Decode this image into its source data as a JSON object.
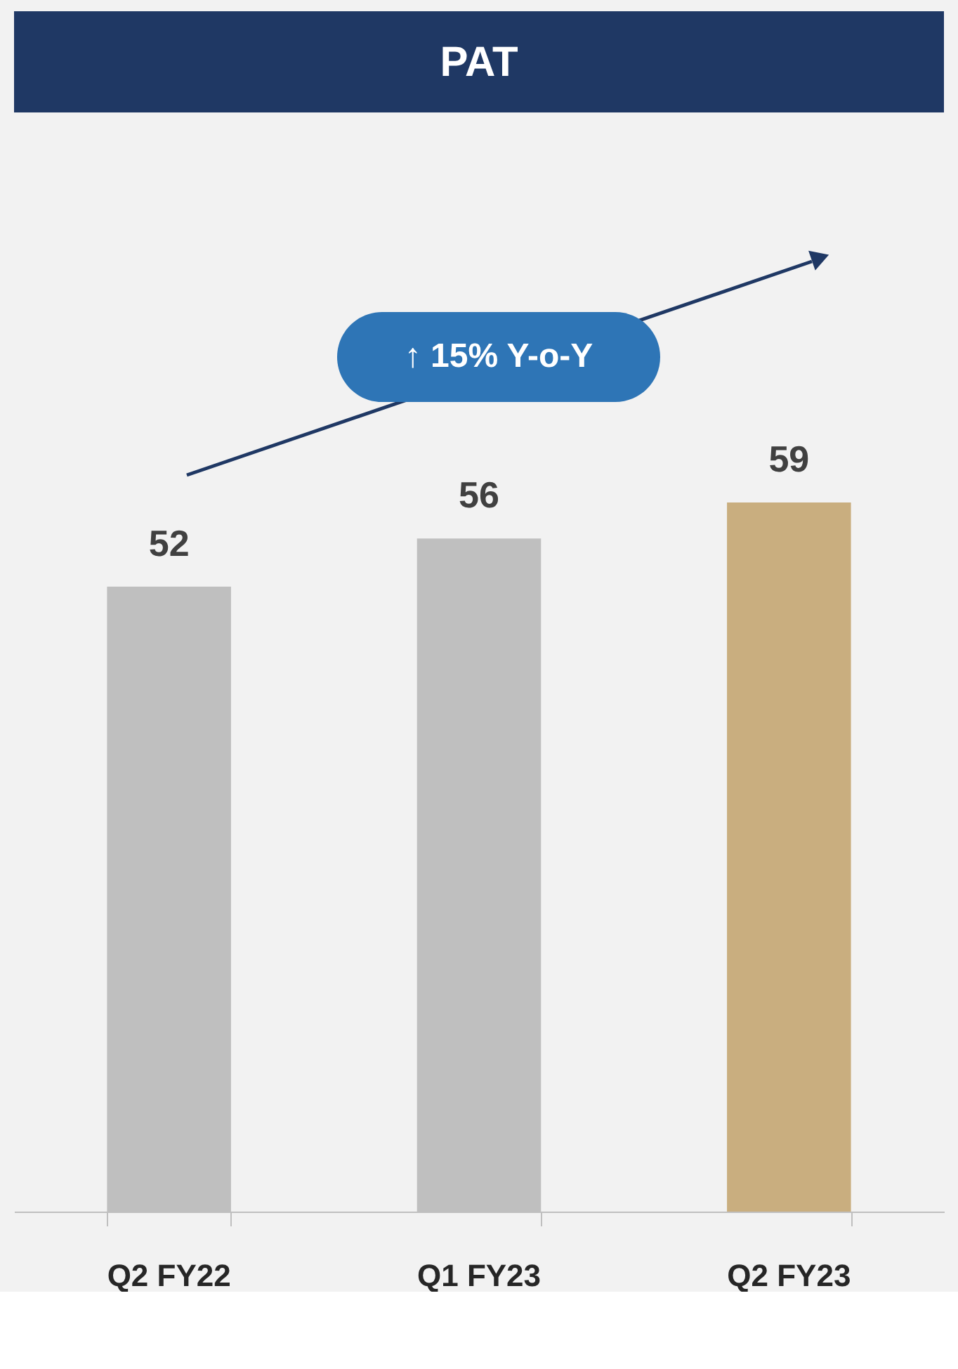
{
  "chart_data": {
    "type": "bar",
    "title": "PAT",
    "categories": [
      "Q2 FY22",
      "Q1 FY23",
      "Q2 FY23"
    ],
    "values": [
      52,
      56,
      59
    ],
    "colors": [
      "#bfbfbf",
      "#bfbfbf",
      "#c9ae7f"
    ],
    "data_labels": true,
    "annotations": [
      "↑ 15% Y-o-Y"
    ],
    "grid": false
  }
}
